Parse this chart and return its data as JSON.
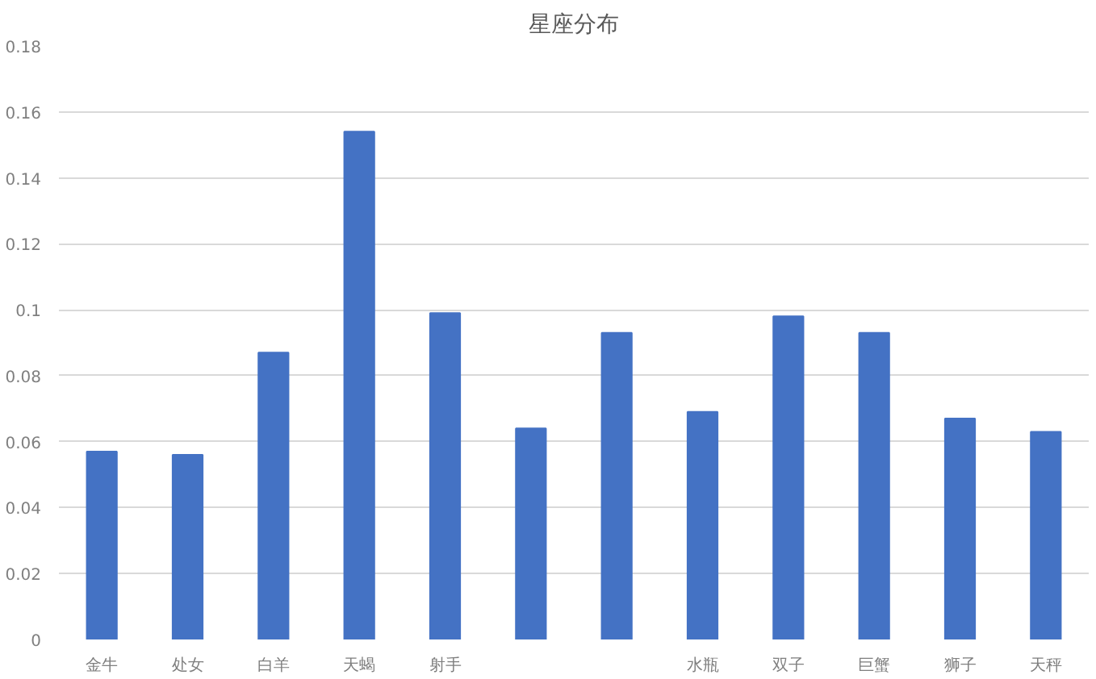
{
  "chart_data": {
    "type": "bar",
    "title": "星座分布",
    "categories": [
      "金牛",
      "处女",
      "白羊",
      "天蝎",
      "射手",
      null,
      null,
      "水瓶",
      "双子",
      "巨蟹",
      "狮子",
      "天秤"
    ],
    "values": [
      0.057,
      0.056,
      0.087,
      0.154,
      0.099,
      0.064,
      0.093,
      0.069,
      0.098,
      0.093,
      0.067,
      0.063
    ],
    "color": "#4472c4",
    "ylim": [
      0,
      0.18
    ],
    "yticks": [
      0,
      0.02,
      0.04,
      0.06,
      0.08,
      0.1,
      0.12,
      0.14,
      0.16,
      0.18
    ],
    "grid": "y"
  }
}
